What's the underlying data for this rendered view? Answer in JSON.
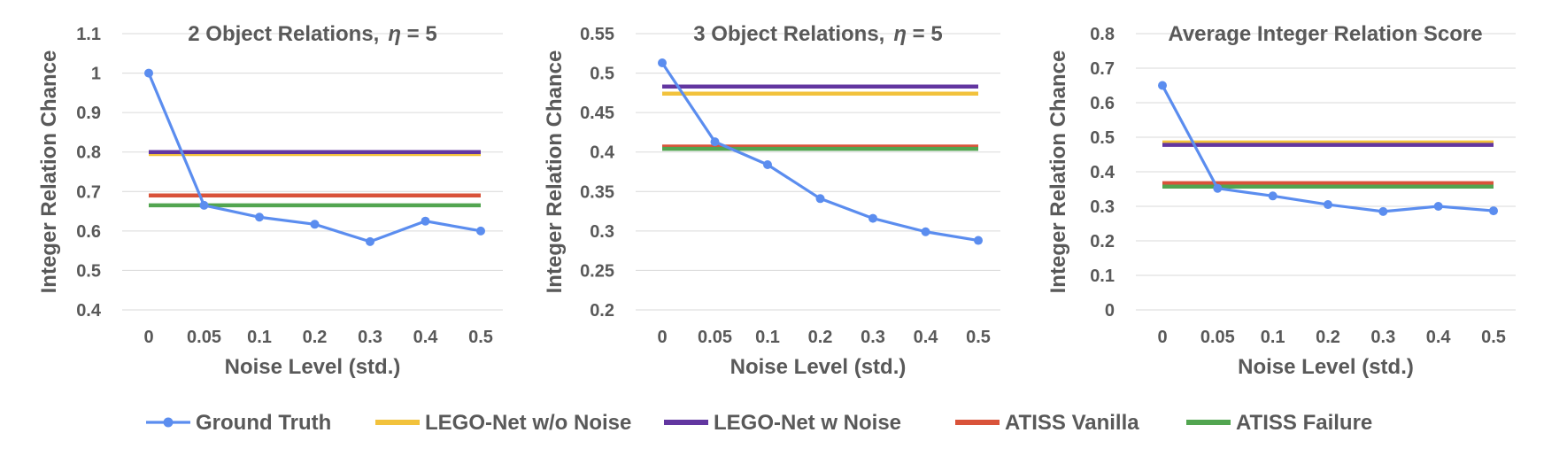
{
  "series_info": [
    {
      "name": "Ground Truth",
      "color": "#5B8DEF",
      "marker": true
    },
    {
      "name": "LEGO-Net w/o Noise",
      "color": "#F2C23C",
      "marker": false
    },
    {
      "name": "LEGO-Net w Noise",
      "color": "#6236A0",
      "marker": false
    },
    {
      "name": "ATISS Vanilla",
      "color": "#D9533A",
      "marker": false
    },
    {
      "name": "ATISS Failure",
      "color": "#52A550",
      "marker": false
    }
  ],
  "chart_data": [
    {
      "type": "line",
      "title": "2 Object Relations,",
      "title_param": "η = 5",
      "xlabel": "Noise Level (std.)",
      "ylabel": "Integer Relation Chance",
      "categories": [
        "0",
        "0.05",
        "0.1",
        "0.2",
        "0.3",
        "0.4",
        "0.5"
      ],
      "ylim": [
        0.4,
        1.1
      ],
      "yticks": [
        "0.4",
        "0.5",
        "0.6",
        "0.7",
        "0.8",
        "0.9",
        "1",
        "1.1"
      ],
      "grid": true,
      "series": [
        {
          "name": "Ground Truth",
          "values": [
            1.0,
            0.665,
            0.635,
            0.617,
            0.573,
            0.625,
            0.6
          ]
        },
        {
          "name": "LEGO-Net w/o Noise",
          "values": [
            0.795,
            0.795,
            0.795,
            0.795,
            0.795,
            0.795,
            0.795
          ]
        },
        {
          "name": "LEGO-Net w Noise",
          "values": [
            0.8,
            0.8,
            0.8,
            0.8,
            0.8,
            0.8,
            0.8
          ]
        },
        {
          "name": "ATISS Vanilla",
          "values": [
            0.69,
            0.69,
            0.69,
            0.69,
            0.69,
            0.69,
            0.69
          ]
        },
        {
          "name": "ATISS Failure",
          "values": [
            0.665,
            0.665,
            0.665,
            0.665,
            0.665,
            0.665,
            0.665
          ]
        }
      ]
    },
    {
      "type": "line",
      "title": "3 Object Relations,",
      "title_param": "η = 5",
      "xlabel": "Noise Level (std.)",
      "ylabel": "Integer Relation Chance",
      "categories": [
        "0",
        "0.05",
        "0.1",
        "0.2",
        "0.3",
        "0.4",
        "0.5"
      ],
      "ylim": [
        0.2,
        0.55
      ],
      "yticks": [
        "0.2",
        "0.25",
        "0.3",
        "0.35",
        "0.4",
        "0.45",
        "0.5",
        "0.55"
      ],
      "grid": true,
      "series": [
        {
          "name": "Ground Truth",
          "values": [
            0.513,
            0.413,
            0.384,
            0.341,
            0.316,
            0.299,
            0.288
          ]
        },
        {
          "name": "LEGO-Net w/o Noise",
          "values": [
            0.474,
            0.474,
            0.474,
            0.474,
            0.474,
            0.474,
            0.474
          ]
        },
        {
          "name": "LEGO-Net w Noise",
          "values": [
            0.483,
            0.483,
            0.483,
            0.483,
            0.483,
            0.483,
            0.483
          ]
        },
        {
          "name": "ATISS Vanilla",
          "values": [
            0.407,
            0.407,
            0.407,
            0.407,
            0.407,
            0.407,
            0.407
          ]
        },
        {
          "name": "ATISS Failure",
          "values": [
            0.404,
            0.404,
            0.404,
            0.404,
            0.404,
            0.404,
            0.404
          ]
        }
      ]
    },
    {
      "type": "line",
      "title": "Average Integer Relation Score",
      "title_param": "",
      "xlabel": "Noise Level (std.)",
      "ylabel": "Integer Relation Chance",
      "categories": [
        "0",
        "0.05",
        "0.1",
        "0.2",
        "0.3",
        "0.4",
        "0.5"
      ],
      "ylim": [
        0,
        0.8
      ],
      "yticks": [
        "0",
        "0.1",
        "0.2",
        "0.3",
        "0.4",
        "0.5",
        "0.6",
        "0.7",
        "0.8"
      ],
      "grid": true,
      "series": [
        {
          "name": "Ground Truth",
          "values": [
            0.65,
            0.352,
            0.33,
            0.305,
            0.285,
            0.3,
            0.287
          ]
        },
        {
          "name": "LEGO-Net w/o Noise",
          "values": [
            0.485,
            0.485,
            0.485,
            0.485,
            0.485,
            0.485,
            0.485
          ]
        },
        {
          "name": "LEGO-Net w Noise",
          "values": [
            0.478,
            0.478,
            0.478,
            0.478,
            0.478,
            0.478,
            0.478
          ]
        },
        {
          "name": "ATISS Vanilla",
          "values": [
            0.367,
            0.367,
            0.367,
            0.367,
            0.367,
            0.367,
            0.367
          ]
        },
        {
          "name": "ATISS Failure",
          "values": [
            0.357,
            0.357,
            0.357,
            0.357,
            0.357,
            0.357,
            0.357
          ]
        }
      ]
    }
  ]
}
